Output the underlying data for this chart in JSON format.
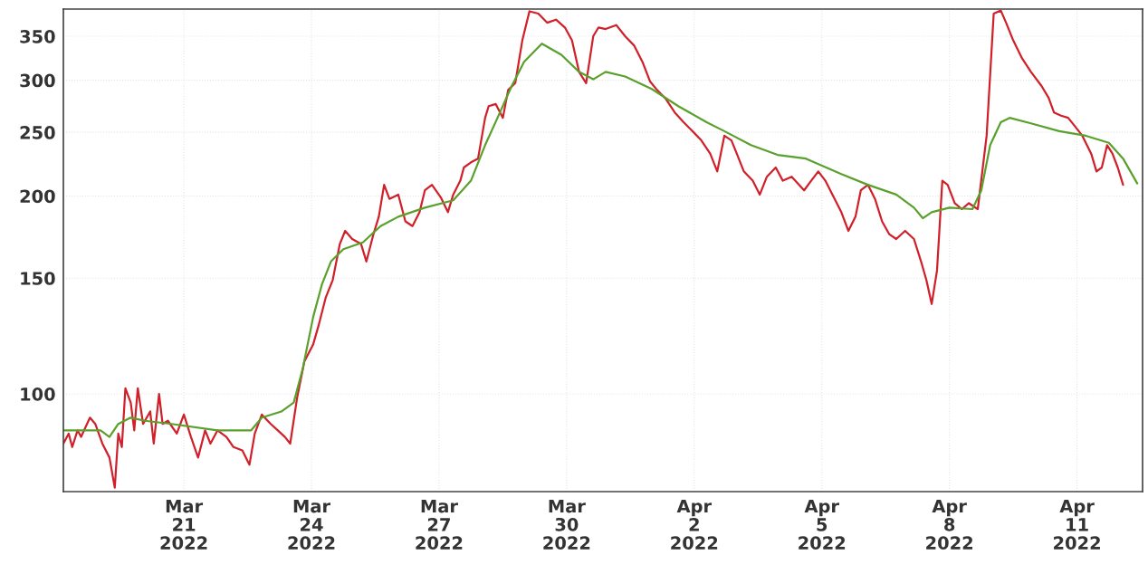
{
  "chart_data": {
    "type": "line",
    "xlim": [
      "2022-03-18T04:00",
      "2022-04-12T13:00"
    ],
    "xticks": [
      {
        "value": "2022-03-21",
        "label": "Mar\n21\n2022"
      },
      {
        "value": "2022-03-24",
        "label": "Mar\n24\n2022"
      },
      {
        "value": "2022-03-27",
        "label": "Mar\n27\n2022"
      },
      {
        "value": "2022-03-30",
        "label": "Mar\n30\n2022"
      },
      {
        "value": "2022-04-02",
        "label": "Apr\n2\n2022"
      },
      {
        "value": "2022-04-05",
        "label": "Apr\n5\n2022"
      },
      {
        "value": "2022-04-08",
        "label": "Apr\n8\n2022"
      },
      {
        "value": "2022-04-11",
        "label": "Apr\n11\n2022"
      }
    ],
    "ylim": [
      71,
      385
    ],
    "yticks": [
      100,
      150,
      200,
      250,
      300,
      350
    ],
    "log": "y",
    "grid": true,
    "legend": false,
    "series": [
      {
        "color": "#d0202a",
        "x": [
          "2022-03-18T04:00",
          "2022-03-18T07:00",
          "2022-03-18T09:00",
          "2022-03-18T12:00",
          "2022-03-18T14:00",
          "2022-03-18T19:00",
          "2022-03-18T22:00",
          "2022-03-19T02:00",
          "2022-03-19T06:00",
          "2022-03-19T09:00",
          "2022-03-19T11:00",
          "2022-03-19T13:00",
          "2022-03-19T15:00",
          "2022-03-19T18:00",
          "2022-03-19T20:00",
          "2022-03-19T22:00",
          "2022-03-20T01:00",
          "2022-03-20T05:00",
          "2022-03-20T07:00",
          "2022-03-20T10:00",
          "2022-03-20T12:00",
          "2022-03-20T15:00",
          "2022-03-20T20:00",
          "2022-03-21T00:00",
          "2022-03-21T04:00",
          "2022-03-21T08:00",
          "2022-03-21T12:00",
          "2022-03-21T15:00",
          "2022-03-21T19:00",
          "2022-03-22T00:00",
          "2022-03-22T04:00",
          "2022-03-22T09:00",
          "2022-03-22T13:00",
          "2022-03-22T16:00",
          "2022-03-22T20:00",
          "2022-03-23T01:00",
          "2022-03-23T05:00",
          "2022-03-23T09:00",
          "2022-03-23T12:00",
          "2022-03-23T16:00",
          "2022-03-23T20:00",
          "2022-03-24T01:00",
          "2022-03-24T04:00",
          "2022-03-24T08:00",
          "2022-03-24T12:00",
          "2022-03-24T16:00",
          "2022-03-24T19:00",
          "2022-03-24T23:00",
          "2022-03-25T04:00",
          "2022-03-25T07:00",
          "2022-03-25T11:00",
          "2022-03-25T14:00",
          "2022-03-25T17:00",
          "2022-03-25T20:00",
          "2022-03-26T01:00",
          "2022-03-26T05:00",
          "2022-03-26T09:00",
          "2022-03-26T13:00",
          "2022-03-26T16:00",
          "2022-03-26T20:00",
          "2022-03-27T01:00",
          "2022-03-27T05:00",
          "2022-03-27T08:00",
          "2022-03-27T12:00",
          "2022-03-27T14:00",
          "2022-03-27T18:00",
          "2022-03-27T22:00",
          "2022-03-28T02:00",
          "2022-03-28T04:00",
          "2022-03-28T08:00",
          "2022-03-28T12:00",
          "2022-03-28T15:00",
          "2022-03-28T19:00",
          "2022-03-28T23:00",
          "2022-03-29T03:00",
          "2022-03-29T08:00",
          "2022-03-29T13:00",
          "2022-03-29T18:00",
          "2022-03-29T23:00",
          "2022-03-30T03:00",
          "2022-03-30T07:00",
          "2022-03-30T11:00",
          "2022-03-30T15:00",
          "2022-03-30T18:00",
          "2022-03-30T22:00",
          "2022-03-31T04:00",
          "2022-03-31T09:00",
          "2022-03-31T14:00",
          "2022-03-31T19:00",
          "2022-03-31T23:00",
          "2022-04-01T03:00",
          "2022-04-01T08:00",
          "2022-04-01T13:00",
          "2022-04-01T18:00",
          "2022-04-01T23:00",
          "2022-04-02T04:00",
          "2022-04-02T09:00",
          "2022-04-02T13:00",
          "2022-04-02T17:00",
          "2022-04-02T21:00",
          "2022-04-03T00:00",
          "2022-04-03T04:00",
          "2022-04-03T09:00",
          "2022-04-03T13:00",
          "2022-04-03T17:00",
          "2022-04-03T22:00",
          "2022-04-04T02:00",
          "2022-04-04T07:00",
          "2022-04-04T14:00",
          "2022-04-04T18:00",
          "2022-04-04T22:00",
          "2022-04-05T02:00",
          "2022-04-05T06:00",
          "2022-04-05T11:00",
          "2022-04-05T15:00",
          "2022-04-05T19:00",
          "2022-04-05T22:00",
          "2022-04-06T02:00",
          "2022-04-06T06:00",
          "2022-04-06T10:00",
          "2022-04-06T14:00",
          "2022-04-06T18:00",
          "2022-04-06T23:00",
          "2022-04-07T04:00",
          "2022-04-07T08:00",
          "2022-04-07T11:00",
          "2022-04-07T14:00",
          "2022-04-07T17:00",
          "2022-04-07T20:00",
          "2022-04-07T23:00",
          "2022-04-08T03:00",
          "2022-04-08T07:00",
          "2022-04-08T11:00",
          "2022-04-08T16:00",
          "2022-04-08T21:00",
          "2022-04-09T01:00",
          "2022-04-09T05:00",
          "2022-04-09T08:00",
          "2022-04-09T12:00",
          "2022-04-09T17:00",
          "2022-04-09T22:00",
          "2022-04-10T04:00",
          "2022-04-10T08:00",
          "2022-04-10T11:00",
          "2022-04-10T15:00",
          "2022-04-10T19:00",
          "2022-04-10T23:00",
          "2022-04-11T03:00",
          "2022-04-11T08:00",
          "2022-04-11T11:00",
          "2022-04-11T14:00",
          "2022-04-11T17:00",
          "2022-04-11T20:00",
          "2022-04-11T23:00",
          "2022-04-12T02:00"
        ],
        "values": [
          84,
          87,
          83,
          88,
          86,
          92,
          90,
          84,
          80,
          72,
          87,
          83,
          102,
          97,
          88,
          102,
          90,
          94,
          84,
          100,
          90,
          91,
          87,
          93,
          86,
          80,
          88,
          84,
          88,
          86,
          83,
          82,
          78,
          87,
          93,
          90,
          88,
          86,
          84,
          99,
          112,
          119,
          127,
          140,
          149,
          169,
          177,
          172,
          169,
          159,
          175,
          186,
          208,
          198,
          201,
          183,
          180,
          189,
          204,
          208,
          199,
          189,
          201,
          211,
          221,
          225,
          228,
          263,
          274,
          276,
          263,
          290,
          297,
          345,
          382,
          379,
          367,
          371,
          361,
          345,
          309,
          297,
          350,
          361,
          359,
          364,
          350,
          339,
          319,
          299,
          290,
          281,
          268,
          259,
          251,
          243,
          232,
          218,
          247,
          243,
          232,
          218,
          211,
          201,
          214,
          221,
          211,
          214,
          204,
          211,
          218,
          211,
          201,
          189,
          177,
          186,
          204,
          208,
          198,
          183,
          175,
          172,
          177,
          172,
          159,
          149,
          137,
          154,
          211,
          208,
          195,
          191,
          195,
          191,
          247,
          379,
          383,
          367,
          345,
          324,
          309,
          294,
          282,
          268,
          265,
          263,
          255,
          247,
          232,
          218,
          221,
          239,
          232,
          221,
          208
        ]
      },
      {
        "color": "#5aa02c",
        "x": [
          "2022-03-18T04:00",
          "2022-03-18T14:00",
          "2022-03-19T01:00",
          "2022-03-19T06:00",
          "2022-03-19T11:00",
          "2022-03-19T18:00",
          "2022-03-20T02:00",
          "2022-03-20T17:00",
          "2022-03-21T19:00",
          "2022-03-22T14:00",
          "2022-03-22T20:00",
          "2022-03-23T07:00",
          "2022-03-23T14:00",
          "2022-03-23T19:00",
          "2022-03-24T01:00",
          "2022-03-24T06:00",
          "2022-03-24T11:00",
          "2022-03-24T18:00",
          "2022-03-25T05:00",
          "2022-03-25T15:00",
          "2022-03-26T01:00",
          "2022-03-26T16:00",
          "2022-03-27T08:00",
          "2022-03-27T18:00",
          "2022-03-28T02:00",
          "2022-03-28T09:00",
          "2022-03-28T17:00",
          "2022-03-29T00:00",
          "2022-03-29T10:00",
          "2022-03-29T21:00",
          "2022-03-30T07:00",
          "2022-03-30T15:00",
          "2022-03-30T22:00",
          "2022-03-31T09:00",
          "2022-04-01T00:00",
          "2022-04-01T15:00",
          "2022-04-02T07:00",
          "2022-04-02T17:00",
          "2022-04-03T08:00",
          "2022-04-03T23:00",
          "2022-04-04T15:00",
          "2022-04-05T11:00",
          "2022-04-06T02:00",
          "2022-04-06T18:00",
          "2022-04-07T04:00",
          "2022-04-07T09:00",
          "2022-04-07T14:00",
          "2022-04-08T00:00",
          "2022-04-08T13:00",
          "2022-04-08T18:00",
          "2022-04-08T23:00",
          "2022-04-09T05:00",
          "2022-04-09T10:00",
          "2022-04-09T22:00",
          "2022-04-10T14:00",
          "2022-04-11T05:00",
          "2022-04-11T18:00",
          "2022-04-12T02:00",
          "2022-04-12T10:00"
        ],
        "values": [
          88,
          88,
          88,
          86,
          90,
          92,
          91,
          90,
          88,
          88,
          92,
          94,
          97,
          109,
          131,
          147,
          159,
          166,
          170,
          180,
          186,
          192,
          197,
          211,
          239,
          263,
          294,
          320,
          341,
          328,
          309,
          301,
          309,
          304,
          291,
          274,
          259,
          251,
          239,
          231,
          228,
          216,
          208,
          201,
          192,
          185,
          189,
          192,
          191,
          204,
          239,
          259,
          263,
          258,
          251,
          247,
          241,
          228,
          209
        ]
      }
    ]
  }
}
